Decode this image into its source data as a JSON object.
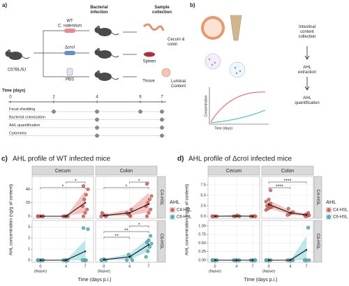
{
  "panel_a": {
    "label": "a)",
    "infection_title": "Bacterial infection",
    "collection_title": "Sample collection",
    "mouse_strain": "C57BL/6J",
    "groups": [
      {
        "name": "WT",
        "detail": "C. rodentium"
      },
      {
        "name": "ΔcroI"
      },
      {
        "name": "PBS"
      }
    ],
    "samples": [
      "Cecum & colon",
      "Spleen",
      "Tissue",
      "Luminal Content"
    ],
    "timeline": {
      "title": "Time (days)",
      "ticks": [
        0,
        2,
        4,
        6,
        7
      ],
      "rows": [
        {
          "name": "Fecal shedding",
          "days": [
            2,
            4,
            6,
            7
          ]
        },
        {
          "name": "Bacterial colonization",
          "days": [
            4,
            7
          ]
        },
        {
          "name": "AHL quantification",
          "days": [
            4,
            7
          ]
        },
        {
          "name": "Cytometry",
          "days": [
            4,
            7
          ]
        }
      ]
    }
  },
  "panel_b": {
    "label": "b)",
    "steps": [
      "Intestinal content collection",
      "AHL extraction",
      "AHL quantification"
    ],
    "y_label": "Concentration",
    "x_label": "Time (days)"
  },
  "chart_data": [
    {
      "type": "scatter",
      "label": "c)",
      "title": "AHL profile of WT infected mice",
      "columns": [
        "Cecum",
        "Colon"
      ],
      "rows": [
        "C4-HSL",
        "C6-HSL"
      ],
      "x_label": "Time (days p.i.)",
      "y_label": "AHL concentration (ng/g of content)",
      "xlim": [
        -1.3,
        8.3
      ],
      "xticks": [
        0,
        4,
        7
      ],
      "x_note": "(Naïve)",
      "legend_title": "AHL",
      "colors": [
        "#e8594e",
        "#3fb9c5"
      ],
      "ylims": [
        [
          0,
          56
        ],
        [
          0,
          3.4
        ]
      ],
      "yticks": [
        [
          0,
          20,
          40
        ],
        [
          0,
          1,
          2,
          3
        ]
      ],
      "panels": [
        {
          "points": {
            "x": [
              0,
              0,
              0,
              0,
              0,
              4,
              4,
              4,
              4,
              4,
              7,
              7,
              7,
              7,
              7,
              7,
              7,
              7
            ],
            "y": [
              0,
              0,
              0,
              0,
              0,
              0,
              0,
              0,
              0,
              0,
              45,
              40,
              32,
              25,
              15,
              10,
              5,
              0
            ]
          },
          "mean": [
            0,
            0,
            20
          ],
          "lower": [
            0,
            0,
            5
          ],
          "upper": [
            0,
            0,
            38
          ],
          "brackets": [
            {
              "x": [
                4,
                7
              ],
              "label": "*"
            },
            {
              "x": [
                0,
                7
              ],
              "label": "*"
            }
          ]
        },
        {
          "points": {
            "x": [
              0,
              0,
              0,
              0,
              0,
              4,
              4,
              4,
              4,
              4,
              7,
              7,
              7,
              7,
              7,
              7,
              7,
              7
            ],
            "y": [
              0,
              0,
              2,
              5,
              1,
              0,
              3,
              5,
              10,
              2,
              48,
              30,
              25,
              20,
              15,
              10,
              5,
              0
            ]
          },
          "mean": [
            1,
            5,
            18
          ],
          "lower": [
            0,
            1,
            6
          ],
          "upper": [
            3,
            10,
            35
          ],
          "brackets": [
            {
              "x": [
                4,
                7
              ],
              "label": "*"
            },
            {
              "x": [
                0,
                7
              ],
              "label": "*"
            }
          ]
        },
        {
          "points": {
            "x": [
              0,
              0,
              0,
              0,
              0,
              4,
              4,
              4,
              4,
              4,
              7,
              7,
              7,
              7,
              7
            ],
            "y": [
              0,
              0,
              0,
              0,
              0,
              0,
              0,
              0,
              0,
              0,
              2.9,
              2.8,
              0,
              0,
              0
            ]
          },
          "mean": [
            0,
            0,
            0.8
          ],
          "lower": [
            0,
            0,
            0
          ],
          "upper": [
            0,
            0,
            1.8
          ],
          "brackets": []
        },
        {
          "points": {
            "x": [
              0,
              0,
              0,
              0,
              4,
              4,
              4,
              4,
              7,
              7,
              7,
              7,
              7,
              7,
              7
            ],
            "y": [
              0,
              0,
              0.1,
              0,
              0,
              0.3,
              0.5,
              0,
              2.2,
              1.8,
              1.6,
              1.5,
              1.2,
              0.8,
              0.3
            ]
          },
          "mean": [
            0.05,
            0.3,
            1.4
          ],
          "lower": [
            0,
            0.05,
            0.8
          ],
          "upper": [
            0.1,
            0.6,
            2
          ],
          "brackets": [
            {
              "x": [
                4,
                7
              ],
              "label": "*"
            },
            {
              "x": [
                0,
                7
              ],
              "label": "**"
            },
            {
              "x": [
                0,
                4
              ],
              "label": "**"
            }
          ]
        }
      ]
    },
    {
      "type": "scatter",
      "label": "d)",
      "title": "AHL profile of ΔcroI infected mice",
      "columns": [
        "Cecum",
        "Colon"
      ],
      "rows": [
        "C4-HSL",
        "C6-HSL"
      ],
      "x_label": "Time (days p.i.)",
      "y_label": "AHL concentration (ng/g of content)",
      "xlim": [
        -1.3,
        8.3
      ],
      "xticks": [
        0,
        4,
        7
      ],
      "x_note": "(Naïve)",
      "legend_title": "AHL",
      "colors": [
        "#e8594e",
        "#3fb9c5"
      ],
      "ylims": [
        [
          0,
          9
        ],
        [
          0,
          1.1
        ]
      ],
      "yticks": [
        [
          {
            "value": 0,
            "label": "0.0"
          },
          2.5,
          {
            "value": 5,
            "label": "5.0"
          },
          7.5
        ],
        [
          {
            "value": 0,
            "label": "0.00"
          },
          0.25,
          {
            "value": 0.5,
            "label": "0.50"
          },
          0.75,
          {
            "value": 1,
            "label": "1.00"
          }
        ]
      ],
      "panels": [
        {
          "points": {
            "x": [
              0,
              0,
              0,
              0,
              4,
              4,
              4,
              4,
              7,
              7,
              7,
              7
            ],
            "y": [
              0,
              0,
              0,
              0,
              0,
              0.2,
              0,
              0,
              0,
              0,
              0,
              0
            ]
          },
          "mean": [
            0,
            0.05,
            0
          ],
          "lower": [
            0,
            0,
            0
          ],
          "upper": [
            0,
            0.1,
            0
          ],
          "brackets": []
        },
        {
          "points": {
            "x": [
              0,
              0,
              0,
              0,
              0,
              0,
              0,
              0,
              0,
              0,
              4,
              4,
              4,
              4,
              4,
              7,
              7,
              7,
              7,
              7,
              7
            ],
            "y": [
              3.5,
              3,
              2.8,
              2.5,
              2.2,
              2,
              1.8,
              1.5,
              6.2,
              4,
              1.8,
              1,
              0.8,
              0.5,
              0.3,
              0.8,
              0.5,
              0.3,
              0.2,
              0.1,
              0
            ]
          },
          "mean": [
            2.8,
            0.8,
            0.3
          ],
          "lower": [
            1.9,
            0.3,
            0.1
          ],
          "upper": [
            3.8,
            1.4,
            0.6
          ],
          "brackets": [
            {
              "x": [
                0,
                7
              ],
              "label": "****"
            },
            {
              "x": [
                0,
                4
              ],
              "label": "****"
            }
          ]
        },
        {
          "points": {
            "x": [
              0,
              0,
              0,
              0,
              4,
              4,
              4,
              4,
              7,
              7,
              7,
              7
            ],
            "y": [
              0,
              0,
              0,
              0,
              0,
              0,
              0,
              0,
              0,
              0,
              0,
              0
            ]
          },
          "mean": [
            0,
            0,
            0
          ],
          "lower": [
            0,
            0,
            0
          ],
          "upper": [
            0,
            0,
            0
          ],
          "brackets": []
        },
        {
          "points": {
            "x": [
              0,
              0,
              0,
              0,
              4,
              4,
              4,
              4,
              7,
              7,
              7,
              7
            ],
            "y": [
              0,
              0,
              0,
              0,
              0,
              0,
              0,
              0,
              0.95,
              0,
              0,
              0
            ]
          },
          "mean": [
            0,
            0,
            0.3
          ],
          "lower": [
            0,
            0,
            0
          ],
          "upper": [
            0,
            0,
            0.7
          ],
          "brackets": []
        }
      ]
    }
  ]
}
